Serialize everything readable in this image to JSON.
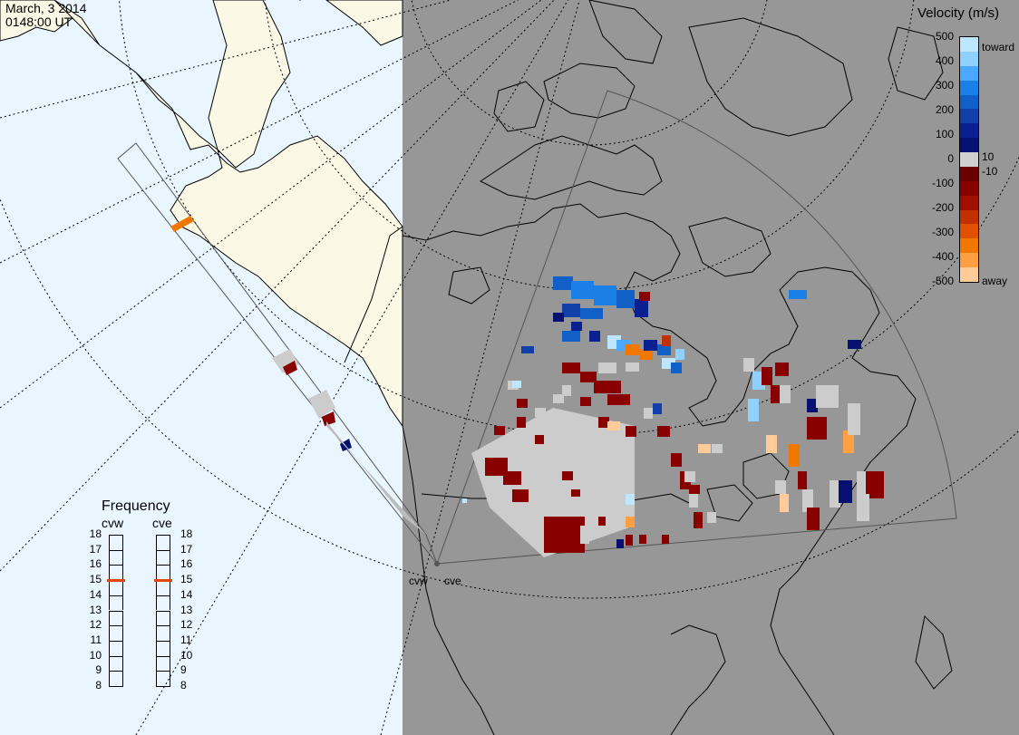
{
  "header": {
    "date": "March, 3 2014",
    "time": "0148:00 UT"
  },
  "colors": {
    "ocean_day": "#e9f6ff",
    "land_day": "#fbf9e6",
    "night": "#979797",
    "gridline": "#000000",
    "fov_outline": "#555555",
    "low_velocity_grey": "#cccccc"
  },
  "frequency_panel": {
    "title": "Frequency",
    "radars": [
      {
        "name": "cvw",
        "current_mhz": 15
      },
      {
        "name": "cve",
        "current_mhz": 15
      }
    ],
    "scale": [
      "18",
      "17",
      "16",
      "15",
      "14",
      "13",
      "12",
      "11",
      "10",
      "9",
      "8"
    ],
    "marker_color": "#e04a10"
  },
  "velocity_scale": {
    "title": "Velocity (m/s)",
    "ticks": [
      "500",
      "400",
      "300",
      "200",
      "100",
      "0",
      "-100",
      "-200",
      "-300",
      "-400",
      "-500"
    ],
    "inner_ticks": [
      "10",
      "-10"
    ],
    "label_toward": "toward",
    "label_away": "away",
    "colors_top_to_bottom": [
      "#bfe6ff",
      "#8fd0ff",
      "#4aa8ff",
      "#1a80e8",
      "#1060c8",
      "#1040a8",
      "#0a2090",
      "#061070",
      "#d0d0d0",
      "#6a0000",
      "#880000",
      "#a01000",
      "#c03000",
      "#e05000",
      "#f07800",
      "#ffa040",
      "#ffcc99"
    ]
  },
  "radar_sites": [
    {
      "name": "cvw"
    },
    {
      "name": "cve"
    }
  ]
}
